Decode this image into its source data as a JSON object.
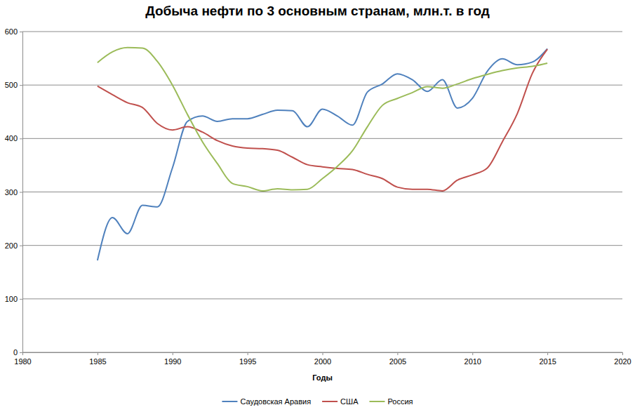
{
  "chart_data": {
    "type": "line",
    "title": "Добыча нефти по 3 основным странам, млн.т. в год",
    "x_label": "Годы",
    "x": [
      1985,
      1986,
      1987,
      1988,
      1989,
      1990,
      1991,
      1992,
      1993,
      1994,
      1995,
      1996,
      1997,
      1998,
      1999,
      2000,
      2001,
      2002,
      2003,
      2004,
      2005,
      2006,
      2007,
      2008,
      2009,
      2010,
      2011,
      2012,
      2013,
      2014,
      2015
    ],
    "series": [
      {
        "name": "Саудовская Аравия",
        "color": "#4f81bd",
        "values": [
          172,
          252,
          222,
          275,
          272,
          345,
          432,
          442,
          432,
          437,
          437,
          445,
          453,
          452,
          422,
          455,
          442,
          425,
          487,
          502,
          521,
          510,
          488,
          510,
          457,
          475,
          526,
          549,
          538,
          543,
          568
        ]
      },
      {
        "name": "США",
        "color": "#c0504d",
        "values": [
          498,
          482,
          467,
          458,
          428,
          416,
          422,
          412,
          396,
          386,
          382,
          381,
          378,
          365,
          351,
          347,
          344,
          342,
          333,
          325,
          309,
          305,
          305,
          302,
          322,
          332,
          345,
          394,
          447,
          522,
          567
        ]
      },
      {
        "name": "Россия",
        "color": "#9bbb59",
        "values": [
          542,
          562,
          570,
          569,
          544,
          500,
          445,
          394,
          353,
          316,
          310,
          302,
          306,
          304,
          305,
          325,
          348,
          377,
          422,
          462,
          475,
          486,
          497,
          494,
          502,
          512,
          520,
          527,
          532,
          535,
          541
        ]
      }
    ],
    "xlim": [
      1980,
      2020
    ],
    "xticks": [
      1980,
      1985,
      1990,
      1995,
      2000,
      2005,
      2010,
      2015,
      2020
    ],
    "ylim": [
      0,
      600
    ],
    "yticks": [
      0,
      100,
      200,
      300,
      400,
      500,
      600
    ],
    "grid": true,
    "legend": "bottom"
  }
}
